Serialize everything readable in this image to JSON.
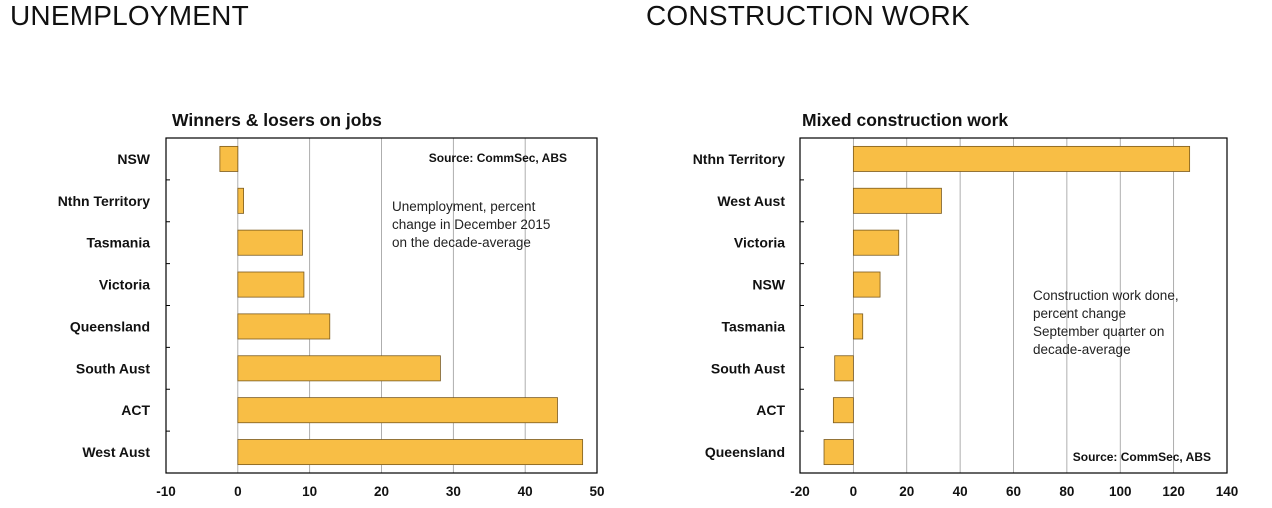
{
  "headings": {
    "left": "UNEMPLOYMENT",
    "right": "CONSTRUCTION WORK"
  },
  "colors": {
    "bar_fill": "#f8be45",
    "bar_stroke": "#7a5a1e",
    "grid": "#9a9a9a",
    "frame": "#000000"
  },
  "chart_data": [
    {
      "type": "bar",
      "orientation": "horizontal",
      "title": "Winners & losers on  jobs",
      "source": "Source: CommSec, ABS",
      "annotation": [
        "Unemployment, percent",
        "change in December 2015",
        "on the decade-average"
      ],
      "categories": [
        "NSW",
        "Nthn Territory",
        "Tasmania",
        "Victoria",
        "Queensland",
        "South Aust",
        "ACT",
        "West Aust"
      ],
      "values": [
        -2.5,
        0.8,
        9,
        9.2,
        12.8,
        28.2,
        44.5,
        48
      ],
      "xlim": [
        -10,
        50
      ],
      "xticks": [
        -10,
        0,
        10,
        20,
        30,
        40,
        50
      ],
      "xtick_labels": [
        "-10",
        "0",
        "10",
        "20",
        "30",
        "40",
        "50"
      ],
      "grid": "vertical",
      "xlabel": "",
      "ylabel": ""
    },
    {
      "type": "bar",
      "orientation": "horizontal",
      "title": "Mixed construction work",
      "source": "Source: CommSec, ABS",
      "annotation": [
        "Construction work done,",
        "percent change",
        "September quarter on",
        "decade-average"
      ],
      "categories": [
        "Nthn Territory",
        "West Aust",
        "Victoria",
        "NSW",
        "Tasmania",
        "South Aust",
        "ACT",
        "Queensland"
      ],
      "values": [
        126,
        33,
        17,
        10,
        3.5,
        -7,
        -7.5,
        -11
      ],
      "xlim": [
        -20,
        140
      ],
      "xticks": [
        -20,
        0,
        20,
        40,
        60,
        80,
        100,
        120,
        140
      ],
      "xtick_labels": [
        "-20",
        "0",
        "20",
        "40",
        "60",
        "80",
        "100",
        "120",
        "140"
      ],
      "grid": "vertical",
      "xlabel": "",
      "ylabel": ""
    }
  ]
}
